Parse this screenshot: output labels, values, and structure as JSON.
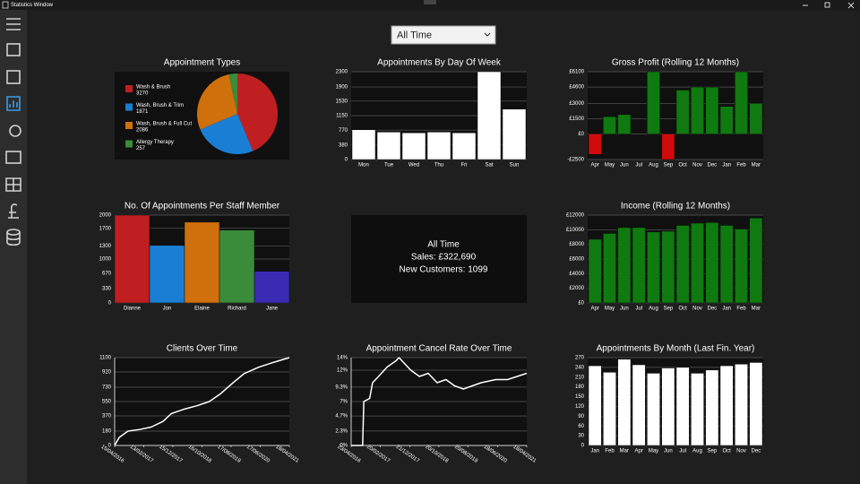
{
  "window": {
    "title": "Statistics Window"
  },
  "filter": {
    "selected": "All Time"
  },
  "summary": {
    "heading": "All Time",
    "sales": "Sales: £322,690",
    "customers": "New Customers: 1099"
  },
  "chart_data": [
    {
      "type": "pie",
      "title": "Appointment Types",
      "categories": [
        "Wash & Brush",
        "Wash, Brush & Trim",
        "Wash, Brush & Full Cut",
        "Allergy Therapy"
      ],
      "values": [
        3270,
        1871,
        2086,
        257
      ],
      "colors": [
        "#c01f22",
        "#1a7fd4",
        "#d0700c",
        "#3a8c3a"
      ]
    },
    {
      "type": "bar",
      "title": "Appointments By Day Of Week",
      "categories": [
        "Mon",
        "Tue",
        "Wed",
        "Thu",
        "Fri",
        "Sat",
        "Sun"
      ],
      "values": [
        780,
        720,
        700,
        720,
        700,
        2300,
        1320
      ],
      "color": "#ffffff",
      "ylim": [
        0,
        2300
      ],
      "yticks": [
        0,
        380,
        770,
        1150,
        1530,
        1900,
        2300
      ],
      "grid": true
    },
    {
      "type": "bar",
      "title": "Gross Profit (Rolling 12 Months)",
      "categories": [
        "Apr",
        "May",
        "Jun",
        "Jul",
        "Aug",
        "Sep",
        "Oct",
        "Nov",
        "Dec",
        "Jan",
        "Feb",
        "Mar"
      ],
      "values": [
        -2000,
        1700,
        1900,
        0,
        6100,
        -2500,
        4300,
        4600,
        4600,
        2700,
        6100,
        3000
      ],
      "positive_color": "#0f7a0f",
      "negative_color": "#d00b0b",
      "ylim": [
        -2500,
        6100
      ],
      "yticks": [
        {
          "value": -2500,
          "label": "-£2500"
        },
        {
          "value": 0,
          "label": "£0"
        },
        {
          "value": 1500,
          "label": "£1500"
        },
        {
          "value": 3000,
          "label": "£3000"
        },
        {
          "value": 4600,
          "label": "£4600"
        },
        {
          "value": 6100,
          "label": "£6100"
        }
      ],
      "grid": true
    },
    {
      "type": "bar",
      "title": "No. Of Appointments Per Staff Member",
      "categories": [
        "Dianne",
        "Jon",
        "Elaine",
        "Richard",
        "Jane"
      ],
      "values": [
        2000,
        1310,
        1840,
        1660,
        720
      ],
      "colors": [
        "#c01f22",
        "#1a7fd4",
        "#d0700c",
        "#3a8c3a",
        "#3a2ab4"
      ],
      "ylim": [
        0,
        2000
      ],
      "yticks": [
        0,
        330,
        670,
        1000,
        1300,
        1700,
        2000
      ],
      "grid": true
    },
    {
      "type": "bar",
      "title": "Income (Rolling 12 Months)",
      "categories": [
        "Apr",
        "May",
        "Jun",
        "Jul",
        "Aug",
        "Sep",
        "Oct",
        "Nov",
        "Dec",
        "Jan",
        "Feb",
        "Mar"
      ],
      "values": [
        8700,
        9500,
        10300,
        10300,
        9700,
        9800,
        10600,
        10900,
        11000,
        10600,
        10100,
        11600
      ],
      "color": "#0f7a0f",
      "ylim": [
        0,
        12000
      ],
      "yticks": [
        {
          "value": 0,
          "label": "£0"
        },
        {
          "value": 2000,
          "label": "£2000"
        },
        {
          "value": 4000,
          "label": "£4000"
        },
        {
          "value": 6000,
          "label": "£6000"
        },
        {
          "value": 8000,
          "label": "£8000"
        },
        {
          "value": 10000,
          "label": "£10000"
        },
        {
          "value": 12000,
          "label": "£12000"
        }
      ],
      "grid": true
    },
    {
      "type": "line",
      "title": "Clients Over Time",
      "x": [
        "15/04/2016",
        "01/06/2016",
        "01/09/2016",
        "01/01/2017",
        "01/05/2017",
        "01/09/2017",
        "01/12/2017",
        "01/04/2018",
        "01/09/2018",
        "01/01/2019",
        "01/05/2019",
        "01/09/2019",
        "01/01/2020",
        "01/06/2020",
        "01/11/2020",
        "18/04/2021"
      ],
      "values": [
        0,
        100,
        180,
        200,
        230,
        300,
        400,
        450,
        500,
        550,
        650,
        780,
        900,
        980,
        1040,
        1100
      ],
      "color": "#ffffff",
      "xlim": [
        "15/04/2016",
        "18/04/2021"
      ],
      "xticks": [
        "15/04/2016",
        "13/02/2017",
        "15/12/2017",
        "16/10/2018",
        "17/08/2019",
        "17/06/2020",
        "18/04/2021"
      ],
      "ylim": [
        0,
        1100
      ],
      "yticks": [
        0,
        180,
        370,
        550,
        730,
        920,
        1100
      ],
      "grid": true
    },
    {
      "type": "line",
      "title": "Appointment Cancel Rate Over Time",
      "x": [
        "23/04/2016",
        "20/08/2016",
        "01/09/2016",
        "01/11/2016",
        "01/12/2016",
        "01/02/2017",
        "01/05/2017",
        "01/08/2017",
        "01/09/2017",
        "01/11/2017",
        "01/01/2018",
        "01/04/2018",
        "01/07/2018",
        "01/10/2018",
        "01/01/2019",
        "01/04/2019",
        "01/07/2019",
        "01/10/2019",
        "01/01/2020",
        "01/06/2020",
        "01/10/2020",
        "18/04/2021"
      ],
      "values": [
        0,
        0,
        7,
        7.5,
        10,
        11,
        12.5,
        13.5,
        14,
        13,
        12,
        11,
        11.5,
        10,
        10.5,
        9.5,
        9,
        9.5,
        10,
        10.5,
        10.5,
        11.5
      ],
      "color": "#ffffff",
      "xlim": [
        "23/04/2016",
        "18/04/2021"
      ],
      "xticks": [
        "23/04/2016",
        "20/02/2017",
        "21/12/2017",
        "20/10/2018",
        "20/08/2019",
        "18/06/2020",
        "18/04/2021"
      ],
      "ylim": [
        0,
        14
      ],
      "yticks": [
        {
          "value": 0,
          "label": "0%"
        },
        {
          "value": 2.3,
          "label": "2.3%"
        },
        {
          "value": 4.7,
          "label": "4.7%"
        },
        {
          "value": 7,
          "label": "7%"
        },
        {
          "value": 9.3,
          "label": "9.3%"
        },
        {
          "value": 12,
          "label": "12%"
        },
        {
          "value": 14,
          "label": "14%"
        }
      ],
      "grid": true
    },
    {
      "type": "bar",
      "title": "Appointments By Month (Last Fin. Year)",
      "categories": [
        "Jan",
        "Feb",
        "Mar",
        "Apr",
        "May",
        "Jun",
        "Jul",
        "Aug",
        "Sep",
        "Oct",
        "Nov",
        "Dec"
      ],
      "values": [
        245,
        225,
        265,
        248,
        222,
        238,
        240,
        222,
        232,
        245,
        250,
        255
      ],
      "color": "#ffffff",
      "ylim": [
        0,
        270
      ],
      "yticks": [
        0,
        30,
        60,
        90,
        120,
        150,
        180,
        210,
        240,
        270
      ],
      "grid": true
    }
  ]
}
